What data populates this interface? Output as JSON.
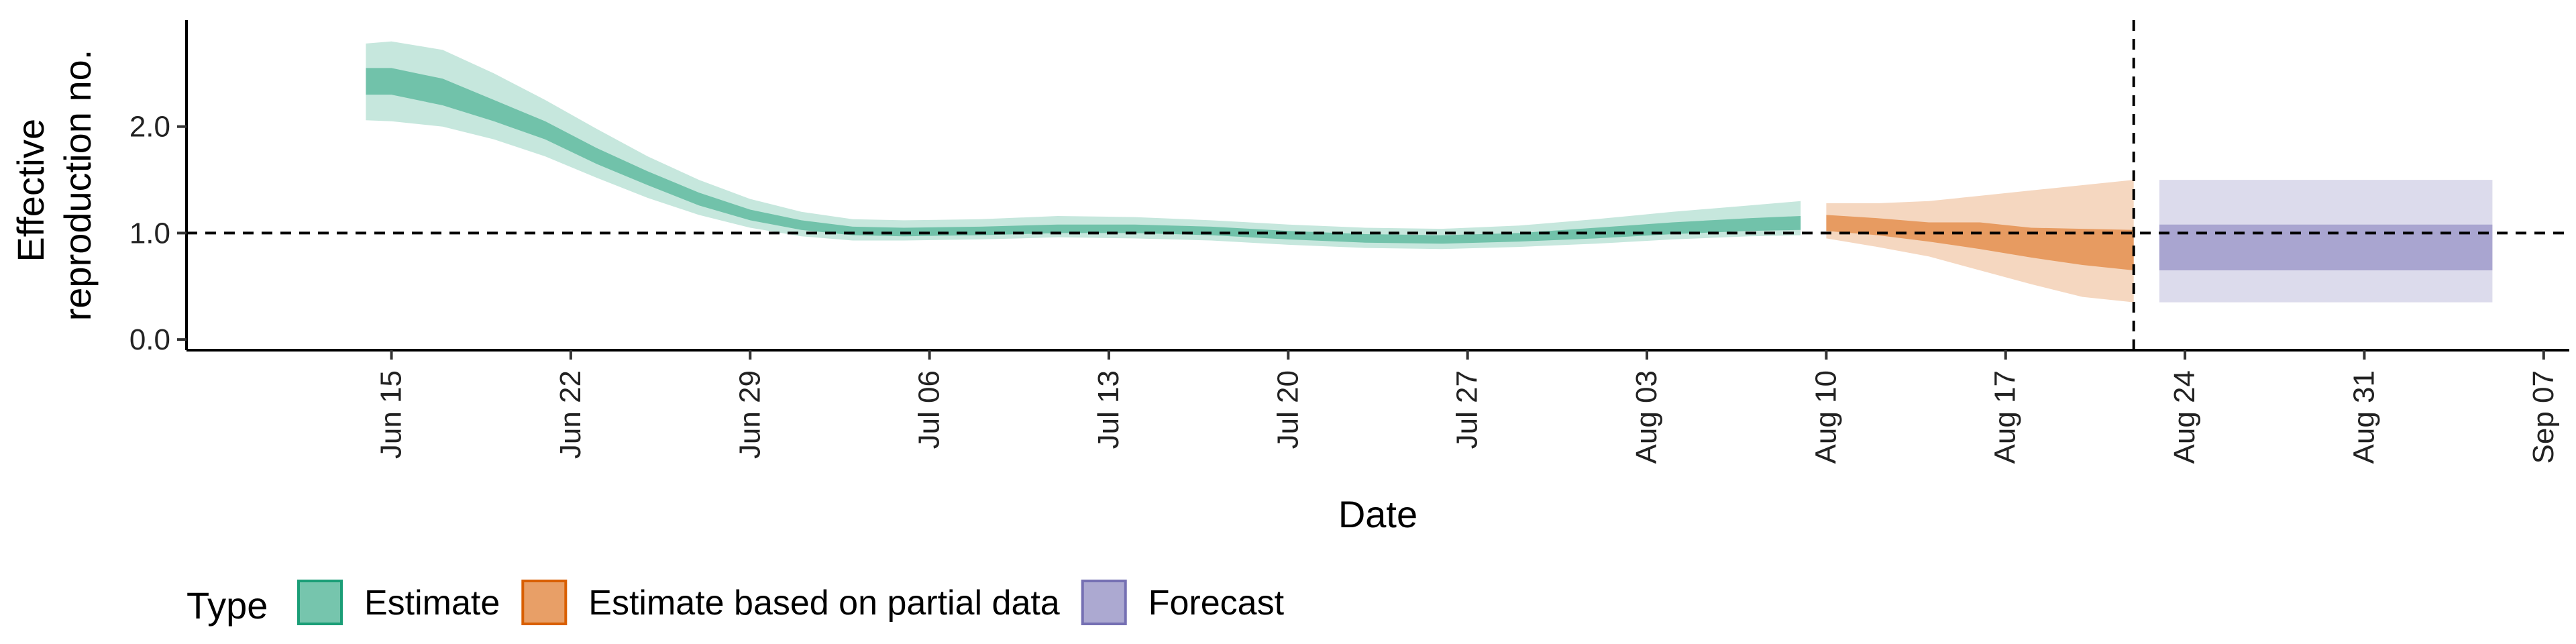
{
  "chart_data": {
    "type": "area",
    "title": "",
    "xlabel": "Date",
    "ylabel_lines": [
      "Effective",
      "reproduction no."
    ],
    "ylim": [
      -0.1,
      3.0
    ],
    "y_ticks": [
      {
        "value": 0,
        "label": "0.0"
      },
      {
        "value": 1,
        "label": "1.0"
      },
      {
        "value": 2,
        "label": "2.0"
      }
    ],
    "x_range": [
      "2020-06-07",
      "2020-09-08"
    ],
    "x_ticks": [
      {
        "date": "2020-06-15",
        "label": "Jun 15"
      },
      {
        "date": "2020-06-22",
        "label": "Jun 22"
      },
      {
        "date": "2020-06-29",
        "label": "Jun 29"
      },
      {
        "date": "2020-07-06",
        "label": "Jul 06"
      },
      {
        "date": "2020-07-13",
        "label": "Jul 13"
      },
      {
        "date": "2020-07-20",
        "label": "Jul 20"
      },
      {
        "date": "2020-07-27",
        "label": "Jul 27"
      },
      {
        "date": "2020-08-03",
        "label": "Aug 03"
      },
      {
        "date": "2020-08-10",
        "label": "Aug 10"
      },
      {
        "date": "2020-08-17",
        "label": "Aug 17"
      },
      {
        "date": "2020-08-24",
        "label": "Aug 24"
      },
      {
        "date": "2020-08-31",
        "label": "Aug 31"
      },
      {
        "date": "2020-09-07",
        "label": "Sep 07"
      }
    ],
    "hline": 1.0,
    "vline_date": "2020-08-22",
    "legend": {
      "title": "Type",
      "position": "bottom"
    },
    "grid": false,
    "series": [
      {
        "name": "Estimate",
        "color": "#1b9e77",
        "data": [
          {
            "date": "2020-06-14",
            "lo90": 2.06,
            "lo50": 2.3,
            "hi50": 2.55,
            "hi90": 2.78
          },
          {
            "date": "2020-06-15",
            "lo90": 2.05,
            "lo50": 2.3,
            "hi50": 2.55,
            "hi90": 2.8
          },
          {
            "date": "2020-06-17",
            "lo90": 2.0,
            "lo50": 2.2,
            "hi50": 2.45,
            "hi90": 2.72
          },
          {
            "date": "2020-06-19",
            "lo90": 1.88,
            "lo50": 2.05,
            "hi50": 2.25,
            "hi90": 2.5
          },
          {
            "date": "2020-06-21",
            "lo90": 1.72,
            "lo50": 1.88,
            "hi50": 2.05,
            "hi90": 2.25
          },
          {
            "date": "2020-06-23",
            "lo90": 1.52,
            "lo50": 1.65,
            "hi50": 1.8,
            "hi90": 1.98
          },
          {
            "date": "2020-06-25",
            "lo90": 1.33,
            "lo50": 1.45,
            "hi50": 1.58,
            "hi90": 1.72
          },
          {
            "date": "2020-06-27",
            "lo90": 1.17,
            "lo50": 1.26,
            "hi50": 1.38,
            "hi90": 1.5
          },
          {
            "date": "2020-06-29",
            "lo90": 1.05,
            "lo50": 1.12,
            "hi50": 1.22,
            "hi90": 1.32
          },
          {
            "date": "2020-07-01",
            "lo90": 0.97,
            "lo50": 1.03,
            "hi50": 1.12,
            "hi90": 1.2
          },
          {
            "date": "2020-07-03",
            "lo90": 0.93,
            "lo50": 0.98,
            "hi50": 1.06,
            "hi90": 1.13
          },
          {
            "date": "2020-07-05",
            "lo90": 0.93,
            "lo50": 0.97,
            "hi50": 1.05,
            "hi90": 1.12
          },
          {
            "date": "2020-07-08",
            "lo90": 0.94,
            "lo50": 0.98,
            "hi50": 1.06,
            "hi90": 1.13
          },
          {
            "date": "2020-07-11",
            "lo90": 0.96,
            "lo50": 1.0,
            "hi50": 1.08,
            "hi90": 1.16
          },
          {
            "date": "2020-07-14",
            "lo90": 0.95,
            "lo50": 1.0,
            "hi50": 1.08,
            "hi90": 1.15
          },
          {
            "date": "2020-07-17",
            "lo90": 0.93,
            "lo50": 0.98,
            "hi50": 1.06,
            "hi90": 1.12
          },
          {
            "date": "2020-07-20",
            "lo90": 0.89,
            "lo50": 0.94,
            "hi50": 1.02,
            "hi90": 1.08
          },
          {
            "date": "2020-07-23",
            "lo90": 0.86,
            "lo50": 0.91,
            "hi50": 0.99,
            "hi90": 1.05
          },
          {
            "date": "2020-07-26",
            "lo90": 0.85,
            "lo50": 0.9,
            "hi50": 0.98,
            "hi90": 1.04
          },
          {
            "date": "2020-07-29",
            "lo90": 0.87,
            "lo50": 0.92,
            "hi50": 1.0,
            "hi90": 1.07
          },
          {
            "date": "2020-08-01",
            "lo90": 0.9,
            "lo50": 0.95,
            "hi50": 1.05,
            "hi90": 1.13
          },
          {
            "date": "2020-08-04",
            "lo90": 0.94,
            "lo50": 0.99,
            "hi50": 1.1,
            "hi90": 1.2
          },
          {
            "date": "2020-08-07",
            "lo90": 0.97,
            "lo50": 1.02,
            "hi50": 1.14,
            "hi90": 1.26
          },
          {
            "date": "2020-08-09",
            "lo90": 0.98,
            "lo50": 1.03,
            "hi50": 1.16,
            "hi90": 1.3
          }
        ]
      },
      {
        "name": "Estimate based on partial data",
        "color": "#d95f02",
        "data": [
          {
            "date": "2020-08-10",
            "lo90": 0.95,
            "lo50": 1.02,
            "hi50": 1.17,
            "hi90": 1.28
          },
          {
            "date": "2020-08-12",
            "lo90": 0.87,
            "lo50": 0.98,
            "hi50": 1.14,
            "hi90": 1.28
          },
          {
            "date": "2020-08-14",
            "lo90": 0.78,
            "lo50": 0.92,
            "hi50": 1.1,
            "hi90": 1.3
          },
          {
            "date": "2020-08-16",
            "lo90": 0.65,
            "lo50": 0.85,
            "hi50": 1.1,
            "hi90": 1.35
          },
          {
            "date": "2020-08-18",
            "lo90": 0.52,
            "lo50": 0.77,
            "hi50": 1.05,
            "hi90": 1.4
          },
          {
            "date": "2020-08-20",
            "lo90": 0.4,
            "lo50": 0.7,
            "hi50": 1.04,
            "hi90": 1.45
          },
          {
            "date": "2020-08-22",
            "lo90": 0.35,
            "lo50": 0.65,
            "hi50": 1.03,
            "hi90": 1.5
          }
        ]
      },
      {
        "name": "Forecast",
        "color": "#7570b3",
        "data": [
          {
            "date": "2020-08-23",
            "lo90": 0.35,
            "lo50": 0.65,
            "hi50": 1.08,
            "hi90": 1.5
          },
          {
            "date": "2020-09-05",
            "lo90": 0.35,
            "lo50": 0.65,
            "hi50": 1.08,
            "hi90": 1.5
          }
        ]
      }
    ]
  }
}
